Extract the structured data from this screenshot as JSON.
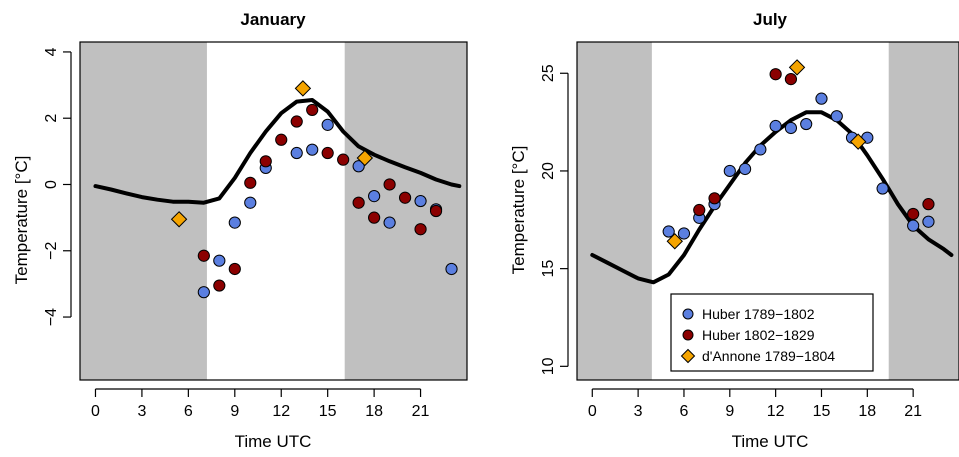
{
  "chart_data": [
    {
      "type": "line",
      "title": "January",
      "xlabel": "Time UTC",
      "ylabel": "Temperature [°C]",
      "xlim": [
        -1,
        24
      ],
      "ylim": [
        -5.9,
        4.3
      ],
      "xticks": [
        0,
        3,
        6,
        9,
        12,
        15,
        18,
        21
      ],
      "xtick_labels": [
        "0",
        "3",
        "6",
        "9",
        "12",
        "15",
        "18",
        "21"
      ],
      "yticks": [
        -4,
        -2,
        0,
        2,
        4
      ],
      "ytick_labels": [
        "−4",
        "−2",
        "0",
        "2",
        "4"
      ],
      "night_shading": [
        [
          -1,
          7.2
        ],
        [
          16.1,
          24
        ]
      ],
      "grid": false,
      "series": [
        {
          "kind": "line",
          "x": [
            0,
            1,
            2,
            3,
            4,
            5,
            6,
            7,
            8,
            9,
            10,
            11,
            12,
            13,
            14,
            15,
            16,
            17,
            18,
            19,
            20,
            21,
            22,
            23,
            23.5
          ],
          "y": [
            -0.05,
            -0.15,
            -0.27,
            -0.38,
            -0.46,
            -0.52,
            -0.52,
            -0.55,
            -0.42,
            0.2,
            0.95,
            1.6,
            2.15,
            2.5,
            2.55,
            2.2,
            1.6,
            1.15,
            0.9,
            0.7,
            0.52,
            0.35,
            0.15,
            0.0,
            -0.05
          ]
        },
        {
          "name": "Huber 1789−1802",
          "kind": "points",
          "marker": "circle",
          "color": "#5b7fe0",
          "x": [
            7,
            8,
            9,
            10,
            11,
            13,
            14,
            15,
            17,
            18,
            19,
            21,
            22,
            23
          ],
          "y": [
            -3.25,
            -2.3,
            -1.15,
            -0.55,
            0.5,
            0.95,
            1.05,
            1.8,
            0.55,
            -0.35,
            -1.15,
            -0.5,
            -0.75,
            -2.55
          ]
        },
        {
          "name": "Huber 1802−1829",
          "kind": "points",
          "marker": "circle",
          "color": "#8b0000",
          "x": [
            7,
            8,
            9,
            10,
            11,
            12,
            13,
            14,
            15,
            16,
            17,
            18,
            19,
            20,
            21,
            22
          ],
          "y": [
            -2.15,
            -3.05,
            -2.55,
            0.05,
            0.7,
            1.35,
            1.9,
            2.25,
            0.95,
            0.75,
            -0.55,
            -1.0,
            0.0,
            -0.4,
            -1.35,
            -0.8
          ]
        },
        {
          "name": "d'Annone 1789−1804",
          "kind": "points",
          "marker": "diamond",
          "color": "#f5a400",
          "x": [
            5.4,
            13.4,
            17.4
          ],
          "y": [
            -1.05,
            2.9,
            0.8
          ]
        }
      ]
    },
    {
      "type": "line",
      "title": "July",
      "xlabel": "Time UTC",
      "ylabel": "Temperature [°C]",
      "xlim": [
        -1,
        24
      ],
      "ylim": [
        9.3,
        26.6
      ],
      "xticks": [
        0,
        3,
        6,
        9,
        12,
        15,
        18,
        21
      ],
      "xtick_labels": [
        "0",
        "3",
        "6",
        "9",
        "12",
        "15",
        "18",
        "21"
      ],
      "yticks": [
        10,
        15,
        20,
        25
      ],
      "ytick_labels": [
        "10",
        "15",
        "20",
        "25"
      ],
      "night_shading": [
        [
          -1,
          3.9
        ],
        [
          19.4,
          24
        ]
      ],
      "grid": false,
      "legend": {
        "placement": "bottom-center",
        "entries": [
          "Huber 1789−1802",
          "Huber 1802−1829",
          "d'Annone 1789−1804"
        ]
      },
      "series": [
        {
          "kind": "line",
          "x": [
            0,
            1,
            2,
            3,
            4,
            5,
            6,
            7,
            8,
            9,
            10,
            11,
            12,
            13,
            14,
            15,
            16,
            17,
            18,
            19,
            20,
            21,
            22,
            23,
            23.5
          ],
          "y": [
            15.7,
            15.3,
            14.9,
            14.5,
            14.3,
            14.7,
            15.7,
            17.0,
            18.2,
            19.3,
            20.4,
            21.3,
            22.0,
            22.6,
            23.0,
            23.0,
            22.6,
            21.9,
            20.8,
            19.6,
            18.3,
            17.2,
            16.5,
            16.0,
            15.7
          ]
        },
        {
          "name": "Huber 1789−1802",
          "kind": "points",
          "marker": "circle",
          "color": "#5b7fe0",
          "x": [
            5,
            6,
            7,
            8,
            9,
            10,
            11,
            12,
            13,
            14,
            15,
            16,
            17,
            18,
            19,
            21,
            22
          ],
          "y": [
            16.9,
            16.8,
            17.6,
            18.3,
            20.0,
            20.1,
            21.1,
            22.3,
            22.2,
            22.4,
            23.7,
            22.8,
            21.7,
            21.7,
            19.1,
            17.2,
            17.4
          ]
        },
        {
          "name": "Huber 1802−1829",
          "kind": "points",
          "marker": "circle",
          "color": "#8b0000",
          "x": [
            7,
            8,
            12,
            13,
            21,
            22
          ],
          "y": [
            18.0,
            18.6,
            24.95,
            24.7,
            17.8,
            18.3
          ]
        },
        {
          "name": "d'Annone 1789−1804",
          "kind": "points",
          "marker": "diamond",
          "color": "#f5a400",
          "x": [
            5.4,
            13.4,
            17.4
          ],
          "y": [
            16.4,
            25.3,
            21.5
          ]
        }
      ]
    }
  ]
}
